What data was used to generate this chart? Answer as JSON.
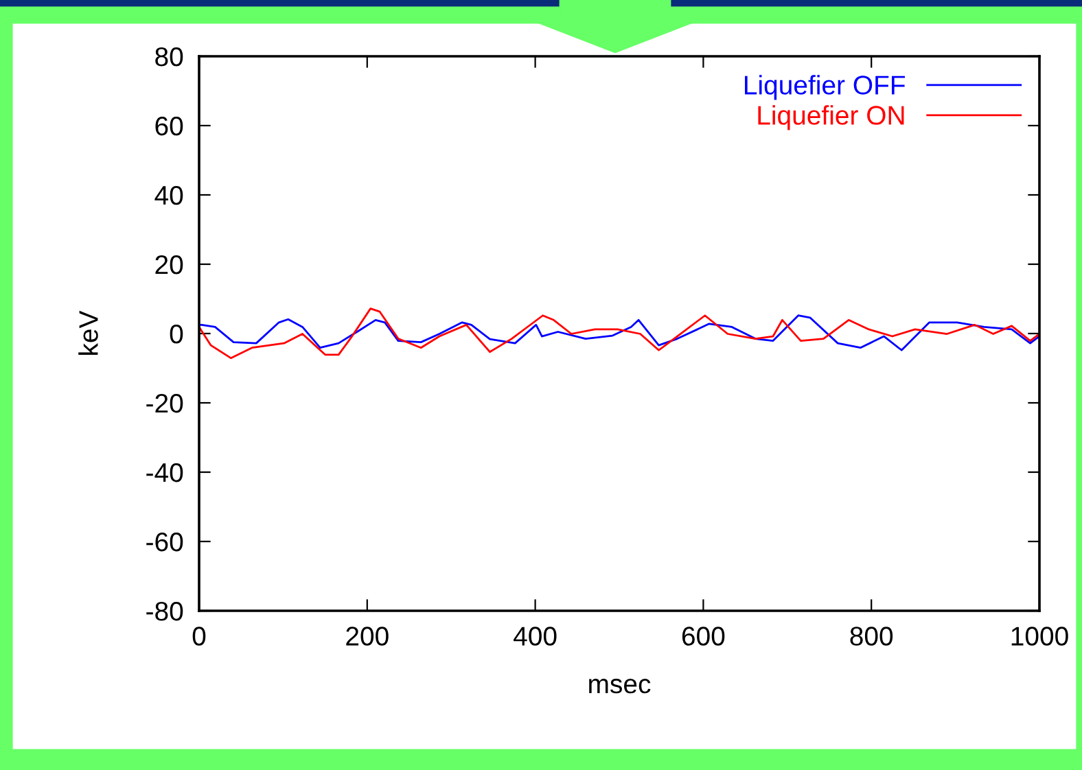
{
  "chart_data": {
    "type": "line",
    "xlabel": "msec",
    "ylabel": "keV",
    "xlim": [
      0,
      1000
    ],
    "ylim": [
      -80,
      80
    ],
    "xticks": [
      0,
      200,
      400,
      600,
      800,
      1000
    ],
    "yticks": [
      -80,
      -60,
      -40,
      -20,
      0,
      20,
      40,
      60,
      80
    ],
    "grid": false,
    "legend": "top right",
    "line_style": "solid",
    "marker": "none",
    "series": [
      {
        "name": "Liquefier OFF",
        "color": "#0000ff",
        "x": [
          0,
          3,
          19,
          41,
          68,
          95,
          106,
          123,
          144,
          166,
          188,
          210,
          221,
          237,
          264,
          286,
          313,
          324,
          346,
          376,
          401,
          408,
          427,
          460,
          492,
          514,
          523,
          547,
          569,
          607,
          634,
          662,
          683,
          713,
          727,
          760,
          787,
          815,
          836,
          869,
          902,
          934,
          967,
          989,
          1000
        ],
        "values": [
          2.5,
          2.5,
          1.9,
          -2.5,
          -2.8,
          3.2,
          4.1,
          1.9,
          -4.1,
          -2.8,
          0.5,
          3.9,
          3.2,
          -2.1,
          -2.5,
          -0.1,
          3.2,
          2.5,
          -1.6,
          -2.8,
          2.5,
          -0.8,
          0.5,
          -1.5,
          -0.6,
          1.9,
          3.9,
          -3.4,
          -1.5,
          2.8,
          1.9,
          -1.5,
          -2.1,
          5.2,
          4.6,
          -2.8,
          -4.1,
          -0.8,
          -4.8,
          3.2,
          3.2,
          1.9,
          1.2,
          -2.8,
          -0.8
        ]
      },
      {
        "name": "Liquefier ON",
        "color": "#ff0000",
        "x": [
          0,
          14,
          38,
          63,
          101,
          123,
          150,
          166,
          182,
          204,
          215,
          237,
          264,
          286,
          318,
          346,
          372,
          409,
          422,
          443,
          471,
          498,
          525,
          547,
          569,
          602,
          629,
          662,
          683,
          694,
          716,
          743,
          773,
          797,
          825,
          852,
          890,
          923,
          945,
          967,
          989,
          1000
        ],
        "values": [
          1.9,
          -3.4,
          -7.1,
          -4.1,
          -2.8,
          -0.1,
          -6.1,
          -6.1,
          -0.8,
          7.2,
          6.3,
          -1.5,
          -4.1,
          -0.8,
          2.5,
          -5.3,
          -1.5,
          5.2,
          3.9,
          -0.1,
          1.2,
          1.2,
          -0.1,
          -4.8,
          -0.8,
          5.2,
          -0.1,
          -1.5,
          -0.8,
          3.9,
          -2.1,
          -1.5,
          3.9,
          1.2,
          -0.8,
          1.2,
          -0.1,
          2.5,
          -0.1,
          2.2,
          -2.1,
          -0.1
        ]
      }
    ]
  }
}
